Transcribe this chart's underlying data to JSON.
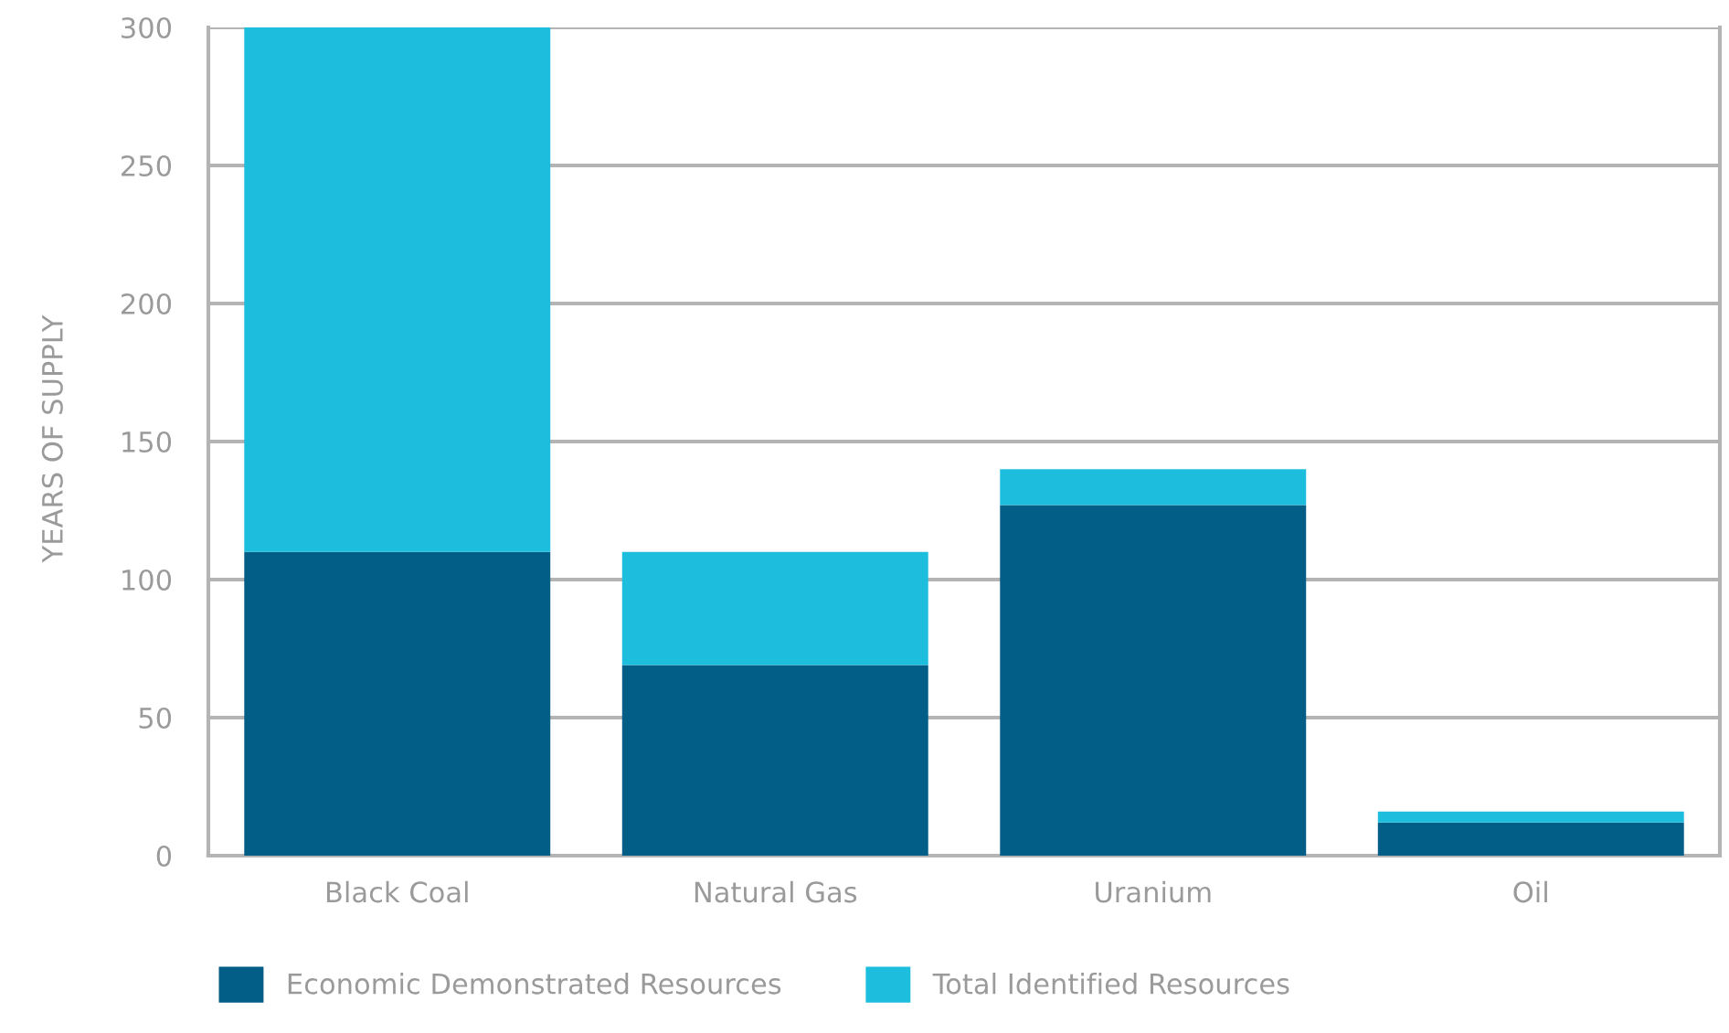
{
  "chart_data": {
    "type": "bar",
    "stacked": true,
    "ylabel": "YEARS OF SUPPLY",
    "categories": [
      "Black Coal",
      "Natural Gas",
      "Uranium",
      "Oil"
    ],
    "series": [
      {
        "name": "Economic Demonstrated Resources",
        "color": "#025d87",
        "values": [
          110,
          69,
          127,
          12
        ]
      },
      {
        "name": "Total Identified Resources",
        "color": "#1dbedd",
        "values": [
          190,
          41,
          13,
          4
        ]
      }
    ],
    "ylim": [
      0,
      300
    ],
    "yticks": [
      0,
      50,
      100,
      150,
      200,
      250,
      300
    ],
    "grid": "y",
    "legend": "bottom"
  }
}
